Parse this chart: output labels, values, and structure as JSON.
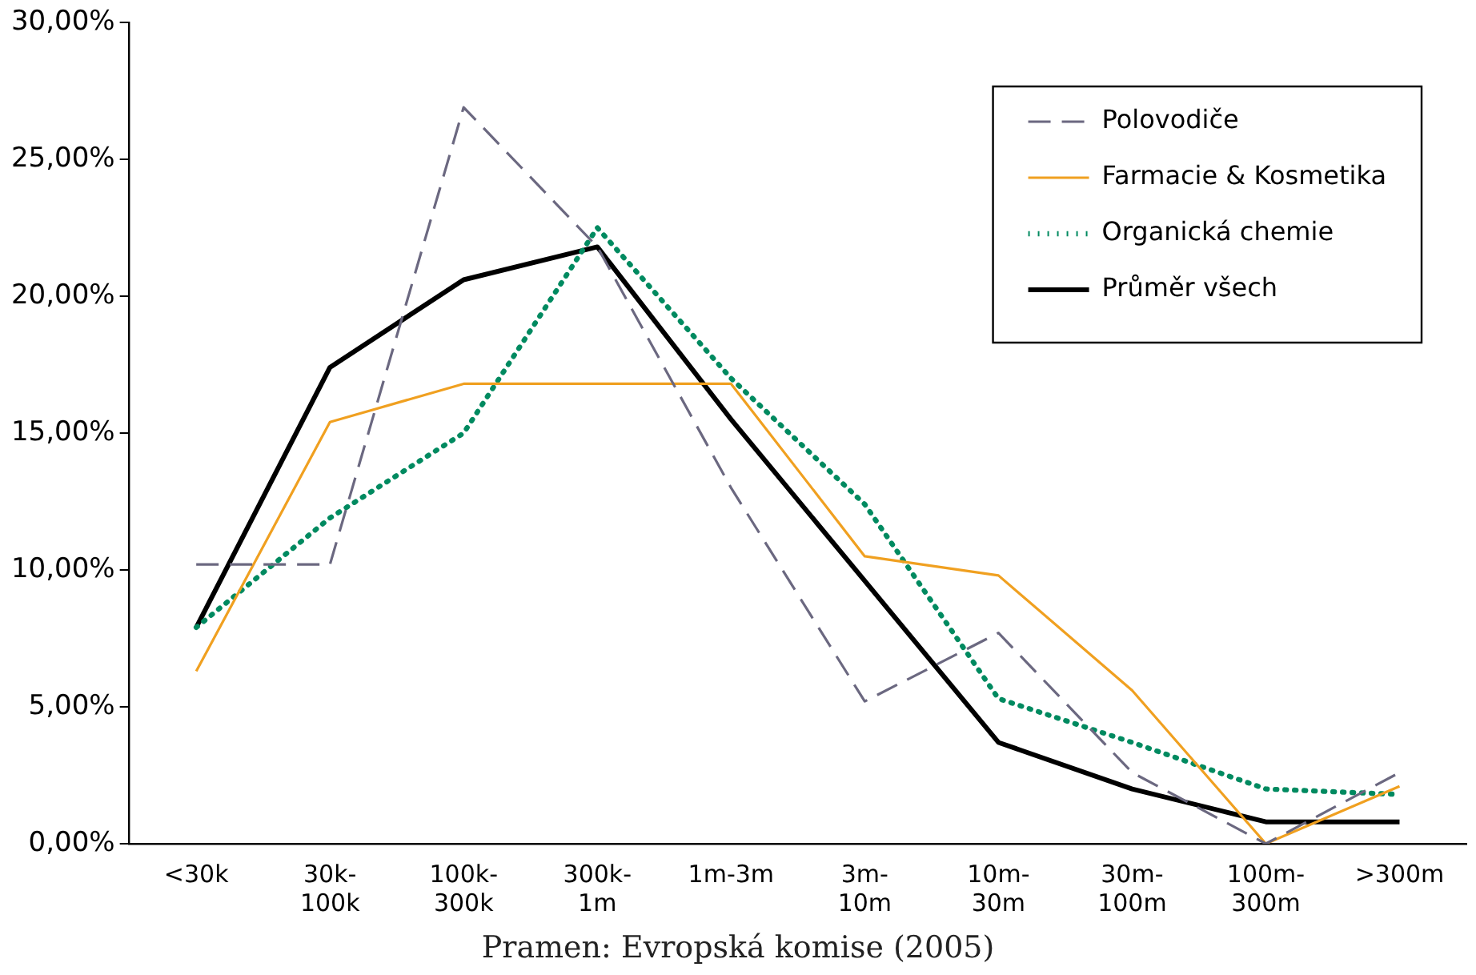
{
  "chart_data": {
    "type": "line",
    "categories": [
      "<30k",
      "30k-100k",
      "100k-300k",
      "300k-1m",
      "1m-3m",
      "3m-10m",
      "10m-30m",
      "30m-100m",
      "100m-300m",
      ">300m"
    ],
    "series": [
      {
        "name": "Polovodiče",
        "color": "#6b6880",
        "line_style": "dashed",
        "values": [
          10.2,
          10.2,
          26.9,
          21.8,
          13.0,
          5.2,
          7.7,
          2.6,
          0.0,
          2.6
        ]
      },
      {
        "name": "Farmacie & Kosmetika",
        "color": "#f0a020",
        "line_style": "solid",
        "values": [
          6.3,
          15.4,
          16.8,
          16.8,
          16.8,
          10.5,
          9.8,
          5.6,
          0.0,
          2.1
        ]
      },
      {
        "name": "Organická chemie",
        "color": "#008a60",
        "line_style": "dotted",
        "values": [
          7.9,
          11.9,
          15.0,
          22.5,
          17.0,
          12.4,
          5.3,
          3.7,
          2.0,
          1.8
        ]
      },
      {
        "name": "Průměr všech",
        "color": "#000000",
        "line_style": "solid",
        "values": [
          7.9,
          17.4,
          20.6,
          21.8,
          15.5,
          9.6,
          3.7,
          2.0,
          0.8,
          0.8
        ]
      }
    ],
    "ylim": [
      0,
      30
    ],
    "yticks": [
      {
        "value": 0,
        "label": "0,00%"
      },
      {
        "value": 5,
        "label": "5,00%"
      },
      {
        "value": 10,
        "label": "10,00%"
      },
      {
        "value": 15,
        "label": "15,00%"
      },
      {
        "value": 20,
        "label": "20,00%"
      },
      {
        "value": 25,
        "label": "25,00%"
      },
      {
        "value": 30,
        "label": "30,00%"
      }
    ],
    "grid": false,
    "legend": "top right",
    "marker": "none",
    "annotations": [
      "Pramen: Evropská komise (2005)"
    ]
  }
}
